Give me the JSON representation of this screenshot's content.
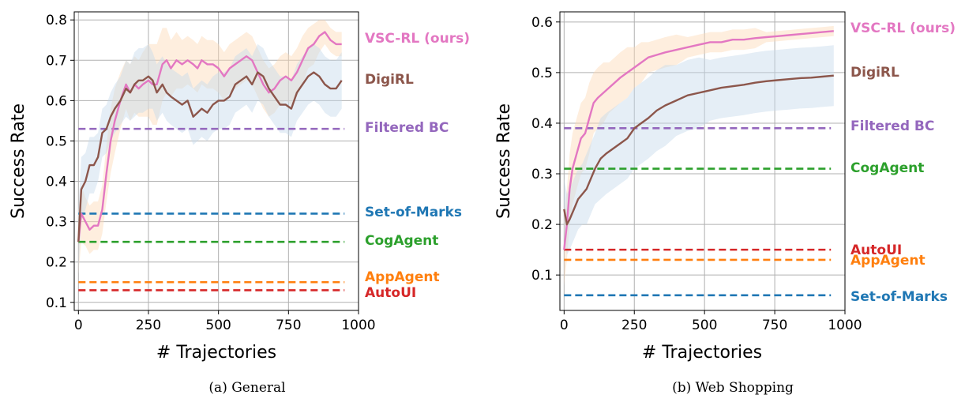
{
  "chart_data": [
    {
      "type": "line",
      "caption": "(a) General",
      "xlabel": "# Trajectories",
      "ylabel": "Success Rate",
      "xlim": [
        -15,
        1000
      ],
      "ylim": [
        0.08,
        0.82
      ],
      "xticks": [
        0,
        250,
        500,
        750,
        1000
      ],
      "yticks": [
        0.1,
        0.2,
        0.3,
        0.4,
        0.5,
        0.6,
        0.7,
        0.8
      ],
      "grid": true,
      "baselines": [
        {
          "name": "Filtered BC",
          "color": "#9467bd",
          "value": 0.53
        },
        {
          "name": "Set-of-Marks",
          "color": "#1f77b4",
          "value": 0.32
        },
        {
          "name": "CogAgent",
          "color": "#2ca02c",
          "value": 0.25
        },
        {
          "name": "AppAgent",
          "color": "#ff7f0e",
          "value": 0.15
        },
        {
          "name": "AutoUI",
          "color": "#d62728",
          "value": 0.13
        }
      ],
      "series": [
        {
          "name": "VSC-RL (ours)",
          "color": "#e377c2",
          "x": [
            0,
            10,
            25,
            40,
            55,
            70,
            85,
            100,
            115,
            130,
            150,
            170,
            185,
            200,
            215,
            230,
            250,
            265,
            280,
            300,
            315,
            330,
            350,
            370,
            390,
            410,
            425,
            440,
            460,
            480,
            500,
            520,
            540,
            560,
            580,
            600,
            620,
            640,
            660,
            680,
            700,
            720,
            740,
            760,
            780,
            800,
            820,
            840,
            860,
            880,
            900,
            920,
            940
          ],
          "y": [
            0.25,
            0.32,
            0.3,
            0.28,
            0.29,
            0.29,
            0.33,
            0.42,
            0.5,
            0.55,
            0.6,
            0.64,
            0.62,
            0.64,
            0.63,
            0.64,
            0.65,
            0.64,
            0.64,
            0.69,
            0.7,
            0.68,
            0.7,
            0.69,
            0.7,
            0.69,
            0.68,
            0.7,
            0.69,
            0.69,
            0.68,
            0.66,
            0.68,
            0.69,
            0.7,
            0.71,
            0.7,
            0.67,
            0.64,
            0.62,
            0.63,
            0.65,
            0.66,
            0.65,
            0.67,
            0.7,
            0.73,
            0.74,
            0.76,
            0.77,
            0.75,
            0.74,
            0.74
          ],
          "band": [
            0.08,
            0.07,
            0.06,
            0.06,
            0.06,
            0.06,
            0.06,
            0.07,
            0.08,
            0.08,
            0.07,
            0.06,
            0.07,
            0.07,
            0.07,
            0.08,
            0.09,
            0.1,
            0.1,
            0.09,
            0.08,
            0.07,
            0.07,
            0.06,
            0.06,
            0.06,
            0.06,
            0.06,
            0.06,
            0.06,
            0.06,
            0.06,
            0.06,
            0.06,
            0.06,
            0.06,
            0.06,
            0.06,
            0.06,
            0.06,
            0.06,
            0.06,
            0.06,
            0.06,
            0.06,
            0.06,
            0.05,
            0.05,
            0.04,
            0.03,
            0.03,
            0.03,
            0.03
          ]
        },
        {
          "name": "DigiRL",
          "color": "#8c564b",
          "x": [
            0,
            10,
            25,
            40,
            55,
            70,
            85,
            100,
            115,
            130,
            150,
            170,
            185,
            200,
            215,
            230,
            250,
            265,
            280,
            300,
            315,
            330,
            350,
            370,
            390,
            410,
            425,
            440,
            460,
            480,
            500,
            520,
            540,
            560,
            580,
            600,
            620,
            640,
            660,
            680,
            700,
            720,
            740,
            760,
            780,
            800,
            820,
            840,
            860,
            880,
            900,
            920,
            940
          ],
          "y": [
            0.25,
            0.38,
            0.4,
            0.44,
            0.44,
            0.46,
            0.52,
            0.53,
            0.56,
            0.58,
            0.6,
            0.63,
            0.62,
            0.64,
            0.65,
            0.65,
            0.66,
            0.65,
            0.62,
            0.64,
            0.62,
            0.61,
            0.6,
            0.59,
            0.6,
            0.56,
            0.57,
            0.58,
            0.57,
            0.59,
            0.6,
            0.6,
            0.61,
            0.64,
            0.65,
            0.66,
            0.64,
            0.67,
            0.66,
            0.63,
            0.61,
            0.59,
            0.59,
            0.58,
            0.62,
            0.64,
            0.66,
            0.67,
            0.66,
            0.64,
            0.63,
            0.63,
            0.65
          ],
          "band": [
            0.08,
            0.08,
            0.07,
            0.07,
            0.07,
            0.06,
            0.06,
            0.06,
            0.06,
            0.06,
            0.06,
            0.07,
            0.07,
            0.08,
            0.08,
            0.08,
            0.08,
            0.07,
            0.07,
            0.07,
            0.07,
            0.07,
            0.07,
            0.07,
            0.07,
            0.07,
            0.07,
            0.07,
            0.07,
            0.07,
            0.07,
            0.07,
            0.07,
            0.07,
            0.07,
            0.07,
            0.07,
            0.07,
            0.07,
            0.07,
            0.07,
            0.07,
            0.07,
            0.07,
            0.07,
            0.07,
            0.07,
            0.07,
            0.07,
            0.07,
            0.07,
            0.07,
            0.07
          ]
        }
      ]
    },
    {
      "type": "line",
      "caption": "(b) Web Shopping",
      "xlabel": "# Trajectories",
      "ylabel": "Success Rate",
      "xlim": [
        -15,
        1000
      ],
      "ylim": [
        0.03,
        0.62
      ],
      "xticks": [
        0,
        250,
        500,
        750,
        1000
      ],
      "yticks": [
        0.1,
        0.2,
        0.3,
        0.4,
        0.5,
        0.6
      ],
      "grid": true,
      "baselines": [
        {
          "name": "Filtered BC",
          "color": "#9467bd",
          "value": 0.39
        },
        {
          "name": "CogAgent",
          "color": "#2ca02c",
          "value": 0.31
        },
        {
          "name": "AutoUI",
          "color": "#d62728",
          "value": 0.15
        },
        {
          "name": "AppAgent",
          "color": "#ff7f0e",
          "value": 0.13
        },
        {
          "name": "Set-of-Marks",
          "color": "#1f77b4",
          "value": 0.06
        }
      ],
      "series": [
        {
          "name": "VSC-RL (ours)",
          "color": "#e377c2",
          "x": [
            0,
            10,
            20,
            30,
            45,
            60,
            75,
            90,
            105,
            120,
            140,
            160,
            180,
            200,
            225,
            250,
            275,
            300,
            330,
            360,
            400,
            440,
            480,
            520,
            560,
            600,
            640,
            680,
            720,
            760,
            800,
            840,
            880,
            920,
            960
          ],
          "y": [
            0.15,
            0.2,
            0.27,
            0.31,
            0.34,
            0.37,
            0.38,
            0.41,
            0.44,
            0.45,
            0.46,
            0.47,
            0.48,
            0.49,
            0.5,
            0.51,
            0.52,
            0.53,
            0.535,
            0.54,
            0.545,
            0.55,
            0.555,
            0.56,
            0.56,
            0.565,
            0.565,
            0.568,
            0.57,
            0.572,
            0.574,
            0.576,
            0.578,
            0.58,
            0.582
          ],
          "band": [
            0.07,
            0.07,
            0.07,
            0.07,
            0.07,
            0.07,
            0.07,
            0.07,
            0.06,
            0.06,
            0.06,
            0.05,
            0.05,
            0.05,
            0.05,
            0.04,
            0.04,
            0.03,
            0.03,
            0.03,
            0.03,
            0.02,
            0.02,
            0.02,
            0.02,
            0.02,
            0.02,
            0.02,
            0.01,
            0.01,
            0.01,
            0.01,
            0.01,
            0.01,
            0.01
          ]
        },
        {
          "name": "DigiRL",
          "color": "#8c564b",
          "x": [
            0,
            10,
            20,
            35,
            50,
            65,
            80,
            95,
            110,
            130,
            150,
            175,
            200,
            225,
            250,
            275,
            300,
            330,
            360,
            400,
            440,
            480,
            520,
            560,
            600,
            640,
            680,
            720,
            760,
            800,
            840,
            880,
            920,
            960
          ],
          "y": [
            0.23,
            0.2,
            0.21,
            0.23,
            0.25,
            0.26,
            0.27,
            0.29,
            0.31,
            0.33,
            0.34,
            0.35,
            0.36,
            0.37,
            0.39,
            0.4,
            0.41,
            0.425,
            0.435,
            0.445,
            0.455,
            0.46,
            0.465,
            0.47,
            0.473,
            0.476,
            0.48,
            0.483,
            0.485,
            0.487,
            0.489,
            0.49,
            0.492,
            0.494
          ],
          "band": [
            0.06,
            0.06,
            0.06,
            0.06,
            0.06,
            0.06,
            0.07,
            0.07,
            0.07,
            0.08,
            0.08,
            0.08,
            0.08,
            0.08,
            0.08,
            0.08,
            0.08,
            0.08,
            0.08,
            0.07,
            0.07,
            0.07,
            0.06,
            0.06,
            0.06,
            0.06,
            0.06,
            0.06,
            0.06,
            0.06,
            0.06,
            0.06,
            0.06,
            0.06
          ]
        }
      ]
    }
  ]
}
